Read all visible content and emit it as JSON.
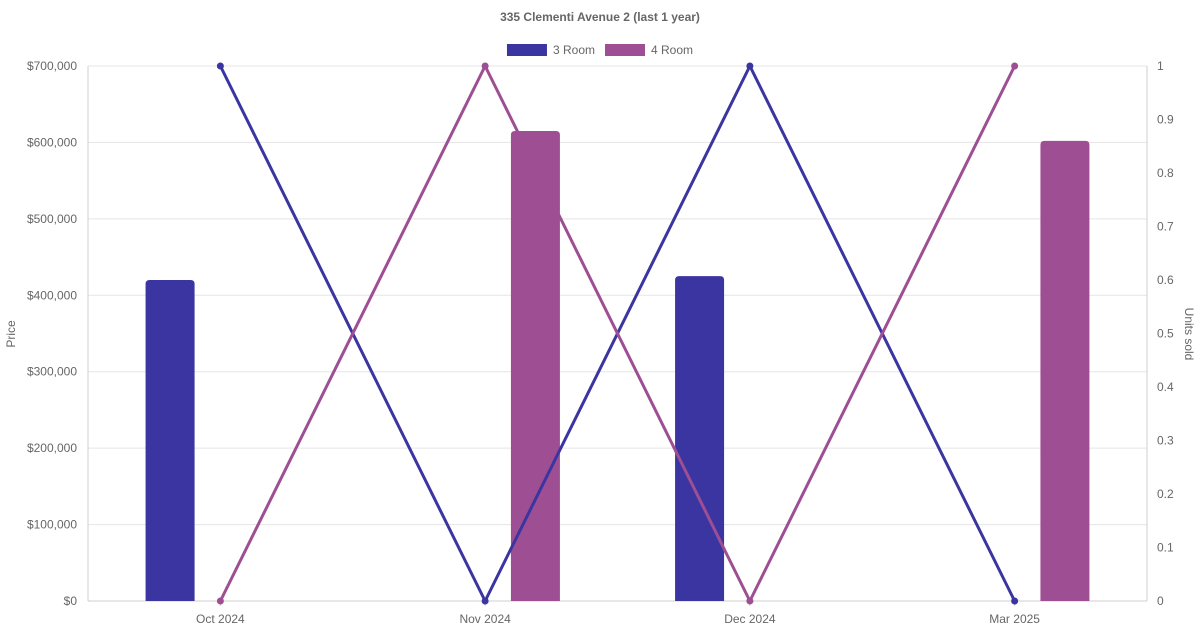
{
  "chart_data": {
    "type": "bar",
    "title": "335 Clementi Avenue 2 (last 1 year)",
    "categories": [
      "Oct 2024",
      "Nov 2024",
      "Dec 2024",
      "Mar 2025"
    ],
    "ylabel": "Price",
    "y2label": "Units sold",
    "ylim": [
      0,
      700000
    ],
    "y2lim": [
      0,
      1
    ],
    "y_ticks": [
      "$0",
      "$100,000",
      "$200,000",
      "$300,000",
      "$400,000",
      "$500,000",
      "$600,000",
      "$700,000"
    ],
    "y2_ticks": [
      "0",
      "0.1",
      "0.2",
      "0.3",
      "0.4",
      "0.5",
      "0.6",
      "0.7",
      "0.8",
      "0.9",
      "1"
    ],
    "grid": true,
    "legend_position": "top-center",
    "series": [
      {
        "name": "3 Room",
        "color": "#3a35a0",
        "price_values": [
          420000,
          null,
          425000,
          null
        ],
        "units_values": [
          1,
          0,
          1,
          0
        ]
      },
      {
        "name": "4 Room",
        "color": "#9e4f93",
        "price_values": [
          null,
          615000,
          null,
          602000
        ],
        "units_values": [
          0,
          1,
          0,
          1
        ]
      }
    ]
  }
}
